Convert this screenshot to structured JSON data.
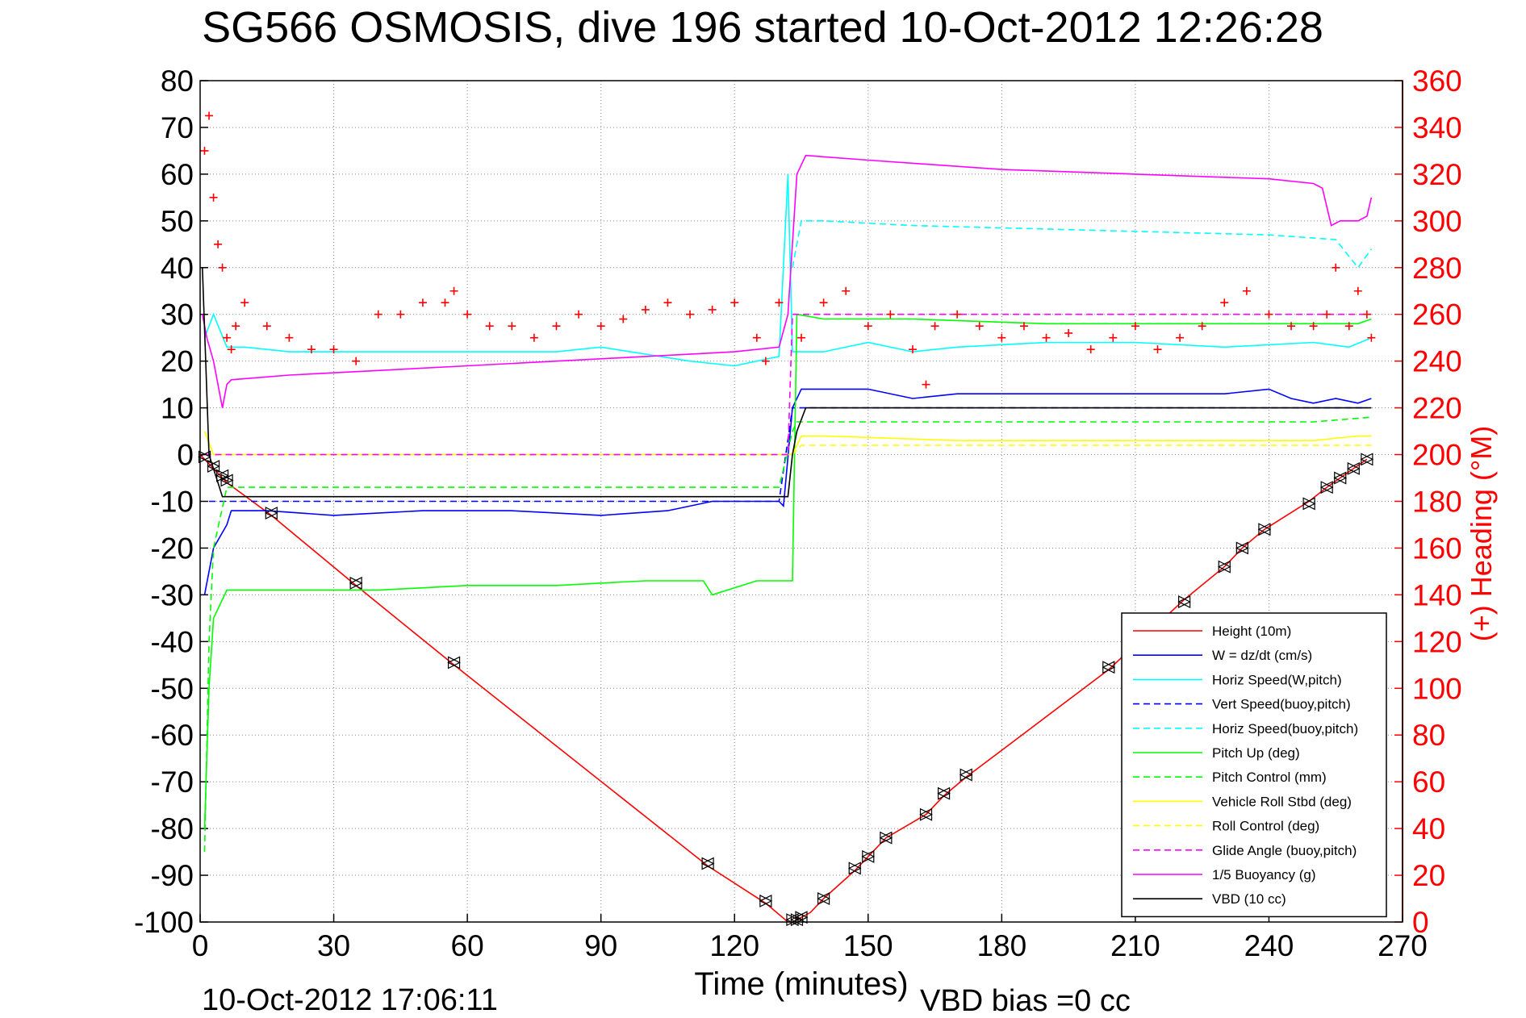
{
  "title": "SG566 OSMOSIS, dive 196 started 10-Oct-2012 12:26:28",
  "footer": {
    "timestamp": "10-Oct-2012 17:06:11",
    "vbd_bias": "VBD bias =0 cc"
  },
  "colors": {
    "height": "#ff0000",
    "w": "#0000ff",
    "horiz_speed": "#00ffff",
    "vert_speed_buoy": "#0000ff",
    "horiz_speed_buoy": "#00ffff",
    "pitch": "#00ff00",
    "pitch_control": "#00ff00",
    "roll": "#ffff00",
    "roll_control": "#ffff00",
    "glide_angle": "#ff00ff",
    "buoyancy": "#ff00ff",
    "vbd": "#000000",
    "heading": "#ff0000",
    "grid": "#888888"
  },
  "chart_data": {
    "type": "line",
    "title": "SG566 OSMOSIS, dive 196 started 10-Oct-2012 12:26:28",
    "xlabel": "Time (minutes)",
    "ylabel_right": "(+) Heading (°M)",
    "xlim": [
      0,
      270
    ],
    "ylim": [
      -100,
      80
    ],
    "ylim_right": [
      0,
      360
    ],
    "x_ticks": [
      0,
      30,
      60,
      90,
      120,
      150,
      180,
      210,
      240,
      270
    ],
    "y_ticks": [
      80,
      70,
      60,
      50,
      40,
      30,
      20,
      10,
      0,
      -10,
      -20,
      -30,
      -40,
      -50,
      -60,
      -70,
      -80,
      -90,
      -100
    ],
    "y_ticks_right": [
      360,
      340,
      320,
      300,
      280,
      260,
      240,
      220,
      200,
      180,
      160,
      140,
      120,
      100,
      80,
      60,
      40,
      20,
      0
    ],
    "grid": true,
    "legend_position": "bottom-right",
    "legend": [
      {
        "key": "height",
        "label": "Height (10m)",
        "style": "solid"
      },
      {
        "key": "w",
        "label": "W = dz/dt (cm/s)",
        "style": "solid"
      },
      {
        "key": "horiz_speed",
        "label": "Horiz Speed(W,pitch)",
        "style": "solid"
      },
      {
        "key": "vert_speed_buoy",
        "label": "Vert Speed(buoy,pitch)",
        "style": "dashed"
      },
      {
        "key": "horiz_speed_buoy",
        "label": "Horiz Speed(buoy,pitch)",
        "style": "dashed"
      },
      {
        "key": "pitch",
        "label": "Pitch Up (deg)",
        "style": "solid"
      },
      {
        "key": "pitch_control",
        "label": "Pitch Control (mm)",
        "style": "dashed"
      },
      {
        "key": "roll",
        "label": "Vehicle Roll Stbd (deg)",
        "style": "solid"
      },
      {
        "key": "roll_control",
        "label": "Roll Control (deg)",
        "style": "dashed"
      },
      {
        "key": "glide_angle",
        "label": "Glide Angle (buoy,pitch)",
        "style": "dashed"
      },
      {
        "key": "buoyancy",
        "label": "1/5 Buoyancy (g)",
        "style": "solid"
      },
      {
        "key": "vbd",
        "label": "VBD (10 cc)",
        "style": "solid"
      }
    ],
    "series": [
      {
        "key": "height",
        "name": "Height (10m)",
        "style": "solid",
        "x": [
          0,
          1,
          3,
          5,
          6,
          16,
          35,
          57,
          114,
          127,
          132,
          133,
          135,
          137,
          140,
          147,
          150,
          154,
          163,
          167,
          172,
          204,
          221,
          230,
          234,
          239,
          249,
          253,
          256,
          259,
          262
        ],
        "y": [
          0,
          -1,
          -3,
          -5,
          -6,
          -13,
          -28,
          -45,
          -88,
          -96,
          -100,
          -100,
          -99,
          -98,
          -95,
          -89,
          -86,
          -82,
          -77,
          -73,
          -69,
          -46,
          -31,
          -24,
          -20,
          -16,
          -10,
          -7,
          -5,
          -3,
          -1
        ]
      },
      {
        "key": "w",
        "name": "W = dz/dt (cm/s)",
        "style": "solid",
        "x": [
          1,
          3,
          6,
          7,
          15,
          30,
          50,
          70,
          90,
          105,
          115,
          125,
          130,
          131,
          133,
          135,
          140,
          150,
          160,
          170,
          190,
          210,
          230,
          240,
          245,
          250,
          255,
          260,
          263
        ],
        "y": [
          -30,
          -20,
          -15,
          -12,
          -12,
          -13,
          -12,
          -12,
          -13,
          -12,
          -10,
          -10,
          -10,
          -11,
          10,
          14,
          14,
          14,
          12,
          13,
          13,
          13,
          13,
          14,
          12,
          11,
          12,
          11,
          12
        ]
      },
      {
        "key": "horiz_speed",
        "name": "Horiz Speed(W,pitch)",
        "style": "solid",
        "x": [
          1,
          3,
          6,
          10,
          20,
          40,
          60,
          80,
          90,
          110,
          120,
          125,
          130,
          132,
          133,
          135,
          140,
          150,
          160,
          170,
          190,
          210,
          230,
          250,
          258,
          263
        ],
        "y": [
          25,
          30,
          23,
          23,
          22,
          22,
          22,
          22,
          23,
          20,
          19,
          20,
          21,
          60,
          22,
          22,
          22,
          24,
          22,
          23,
          24,
          24,
          23,
          24,
          23,
          25
        ]
      },
      {
        "key": "vert_speed_buoy",
        "name": "Vert Speed(buoy,pitch)",
        "style": "dashed",
        "x": [
          2,
          5,
          20,
          60,
          100,
          130,
          133,
          135,
          150,
          200,
          250,
          262
        ],
        "y": [
          -10,
          -10,
          -10,
          -10,
          -10,
          -10,
          10,
          10,
          10,
          10,
          10,
          10
        ]
      },
      {
        "key": "horiz_speed_buoy",
        "name": "Horiz Speed(buoy,pitch)",
        "style": "dashed",
        "x": [
          133,
          135,
          140,
          160,
          200,
          240,
          255,
          260,
          263
        ],
        "y": [
          40,
          50,
          50,
          49,
          48,
          47,
          46,
          40,
          44
        ]
      },
      {
        "key": "pitch",
        "name": "Pitch Up (deg)",
        "style": "solid",
        "x": [
          1,
          2,
          3,
          6,
          10,
          20,
          40,
          60,
          80,
          100,
          113,
          115,
          125,
          130,
          133,
          134,
          140,
          160,
          190,
          220,
          250,
          260,
          263
        ],
        "y": [
          -80,
          -50,
          -35,
          -29,
          -29,
          -29,
          -29,
          -28,
          -28,
          -27,
          -27,
          -30,
          -27,
          -27,
          -27,
          30,
          29,
          29,
          28,
          28,
          28,
          28,
          29
        ]
      },
      {
        "key": "pitch_control",
        "name": "Pitch Control (mm)",
        "style": "dashed",
        "x": [
          1,
          2,
          3,
          6,
          20,
          60,
          100,
          130,
          133,
          134,
          140,
          200,
          250,
          263
        ],
        "y": [
          -85,
          -40,
          -20,
          -7,
          -7,
          -7,
          -7,
          -7,
          5,
          7,
          7,
          7,
          7,
          8
        ]
      },
      {
        "key": "roll",
        "name": "Vehicle Roll Stbd (deg)",
        "style": "solid",
        "x": [
          1,
          3,
          6,
          20,
          40,
          60,
          100,
          120,
          130,
          133,
          135,
          140,
          170,
          200,
          230,
          250,
          260,
          263
        ],
        "y": [
          5,
          0,
          0,
          0,
          0,
          0,
          0,
          0,
          0,
          0,
          4,
          4,
          3,
          3,
          3,
          3,
          4,
          4
        ]
      },
      {
        "key": "roll_control",
        "name": "Roll Control (deg)",
        "style": "dashed",
        "x": [
          1,
          3,
          6,
          60,
          120,
          133,
          135,
          140,
          200,
          250,
          263
        ],
        "y": [
          0,
          0,
          0,
          0,
          0,
          0,
          2,
          2,
          2,
          2,
          2
        ]
      },
      {
        "key": "glide_angle",
        "name": "Glide Angle (buoy,pitch)",
        "style": "dashed",
        "x": [
          1,
          3,
          6,
          60,
          120,
          132,
          133,
          134,
          140,
          200,
          250,
          263
        ],
        "y": [
          0,
          0,
          0,
          0,
          0,
          0,
          30,
          30,
          30,
          30,
          30,
          30
        ]
      },
      {
        "key": "buoyancy",
        "name": "1/5 Buoyancy (g)",
        "style": "solid",
        "x": [
          0.5,
          1.5,
          3,
          5,
          6,
          7,
          20,
          40,
          60,
          80,
          100,
          120,
          130,
          132,
          134,
          136,
          150,
          180,
          210,
          240,
          250,
          252,
          254,
          256,
          260,
          262,
          263
        ],
        "y": [
          30,
          25,
          20,
          10,
          15,
          16,
          17,
          18,
          19,
          20,
          21,
          22,
          23,
          30,
          60,
          64,
          63,
          61,
          60,
          59,
          58,
          57,
          49,
          50,
          50,
          51,
          55
        ]
      },
      {
        "key": "vbd",
        "name": "VBD (10 cc)",
        "style": "solid",
        "x": [
          0.5,
          2,
          5,
          20,
          60,
          100,
          130,
          132,
          133,
          134,
          136,
          150,
          200,
          240,
          263
        ],
        "y": [
          40,
          0,
          -9,
          -9,
          -9,
          -9,
          -9,
          -9,
          0,
          5,
          10,
          10,
          10,
          10,
          10
        ]
      },
      {
        "key": "heading",
        "name": "Heading (°M)",
        "style": "markers",
        "axis": "right",
        "x": [
          1,
          2,
          3,
          4,
          5,
          6,
          7,
          8,
          10,
          15,
          20,
          25,
          30,
          35,
          40,
          45,
          50,
          55,
          57,
          60,
          65,
          70,
          75,
          80,
          85,
          90,
          95,
          100,
          105,
          110,
          115,
          120,
          125,
          127,
          130,
          135,
          140,
          145,
          150,
          155,
          160,
          163,
          165,
          170,
          175,
          180,
          185,
          190,
          195,
          200,
          205,
          210,
          215,
          220,
          225,
          230,
          235,
          240,
          245,
          250,
          253,
          255,
          258,
          260,
          262,
          263
        ],
        "y": [
          330,
          345,
          310,
          290,
          280,
          250,
          245,
          255,
          265,
          255,
          250,
          245,
          245,
          240,
          260,
          260,
          265,
          265,
          270,
          260,
          255,
          255,
          250,
          255,
          260,
          255,
          258,
          262,
          265,
          260,
          262,
          265,
          250,
          240,
          265,
          250,
          265,
          270,
          255,
          260,
          245,
          230,
          255,
          260,
          255,
          250,
          255,
          250,
          252,
          245,
          250,
          255,
          245,
          250,
          255,
          265,
          270,
          260,
          255,
          255,
          260,
          280,
          255,
          270,
          260,
          250
        ]
      }
    ],
    "vbd_markers": {
      "x": [
        1,
        3,
        5,
        6,
        16,
        35,
        57,
        114,
        127,
        133,
        134,
        135,
        140,
        147,
        150,
        154,
        163,
        167,
        172,
        204,
        221,
        230,
        234,
        239,
        249,
        253,
        256,
        259,
        262
      ],
      "y": [
        -0.5,
        -2.5,
        -4.5,
        -5.5,
        -12.5,
        -27.5,
        -44.5,
        -87.5,
        -95.5,
        -99.5,
        -99.5,
        -99,
        -95,
        -88.5,
        -86,
        -82,
        -77,
        -72.5,
        -68.5,
        -45.5,
        -31.5,
        -24,
        -20,
        -16,
        -10.5,
        -7,
        -5,
        -3,
        -1
      ]
    }
  }
}
